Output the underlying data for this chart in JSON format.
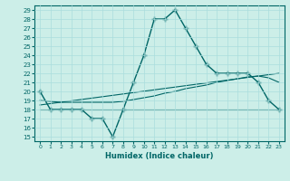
{
  "xlabel": "Humidex (Indice chaleur)",
  "bg_color": "#cceee8",
  "line_color": "#006666",
  "grid_color": "#aadddd",
  "xlim": [
    -0.5,
    23.5
  ],
  "ylim": [
    14.5,
    29.5
  ],
  "yticks": [
    15,
    16,
    17,
    18,
    19,
    20,
    21,
    22,
    23,
    24,
    25,
    26,
    27,
    28,
    29
  ],
  "xticks": [
    0,
    1,
    2,
    3,
    4,
    5,
    6,
    7,
    8,
    9,
    10,
    11,
    12,
    13,
    14,
    15,
    16,
    17,
    18,
    19,
    20,
    21,
    22,
    23
  ],
  "series": [
    {
      "x": [
        0,
        1,
        2,
        3,
        4,
        5,
        6,
        7,
        8,
        9,
        10,
        11,
        12,
        13,
        14,
        15,
        16,
        17,
        18,
        19,
        20,
        21,
        22,
        23
      ],
      "y": [
        20,
        18,
        18,
        18,
        18,
        17,
        17,
        15,
        18,
        21,
        24,
        28,
        28,
        29,
        27,
        25,
        23,
        22,
        22,
        22,
        22,
        21,
        19,
        18
      ],
      "color": "#006666",
      "marker": "+",
      "markersize": 4,
      "linewidth": 1.0
    },
    {
      "x": [
        0,
        1,
        2,
        3,
        4,
        5,
        6,
        7,
        8,
        9,
        10,
        11,
        12,
        13,
        14,
        15,
        16,
        17,
        18,
        19,
        20,
        21,
        22,
        23
      ],
      "y": [
        18,
        18,
        18,
        18,
        18,
        18,
        18,
        18,
        18,
        18,
        18,
        18,
        18,
        18,
        18,
        18,
        18,
        18,
        18,
        18,
        18,
        18,
        18,
        18
      ],
      "color": "#006666",
      "marker": null,
      "linewidth": 0.8
    },
    {
      "x": [
        0,
        1,
        2,
        3,
        4,
        5,
        6,
        7,
        8,
        9,
        10,
        11,
        12,
        13,
        14,
        15,
        16,
        17,
        18,
        19,
        20,
        21,
        22,
        23
      ],
      "y": [
        19.0,
        18.9,
        18.8,
        18.8,
        18.8,
        18.8,
        18.8,
        18.8,
        18.9,
        19.1,
        19.3,
        19.5,
        19.8,
        20.0,
        20.3,
        20.5,
        20.7,
        21.0,
        21.2,
        21.4,
        21.6,
        21.7,
        21.5,
        21.0
      ],
      "color": "#006666",
      "marker": null,
      "linewidth": 0.8
    },
    {
      "x": [
        0,
        23
      ],
      "y": [
        18.5,
        22.0
      ],
      "color": "#006666",
      "marker": null,
      "linewidth": 0.8
    }
  ]
}
